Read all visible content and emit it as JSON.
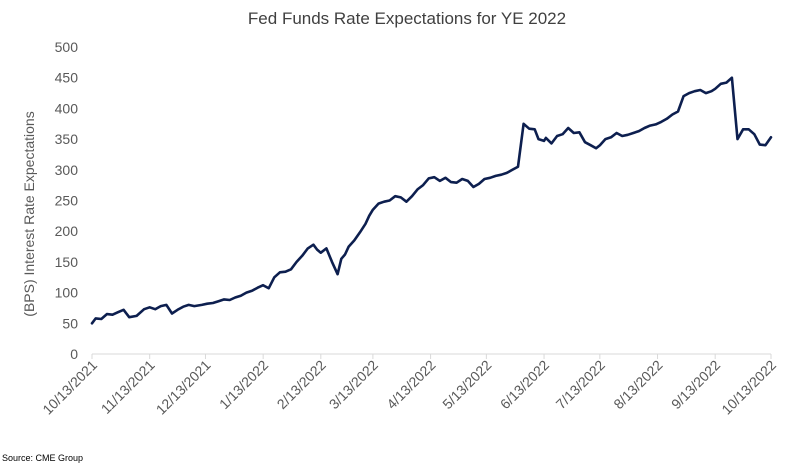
{
  "chart_data": {
    "type": "line",
    "title": "Fed Funds Rate Expectations for YE 2022",
    "xlabel": "",
    "ylabel": "(BPS) Interest Rate Expectations",
    "ylim": [
      0,
      500
    ],
    "yticks": [
      0,
      50,
      100,
      150,
      200,
      250,
      300,
      350,
      400,
      450,
      500
    ],
    "xticks": [
      "10/13/2021",
      "11/13/2021",
      "12/13/2021",
      "1/13/2022",
      "2/13/2022",
      "3/13/2022",
      "4/13/2022",
      "5/13/2022",
      "6/13/2022",
      "7/13/2022",
      "8/13/2022",
      "9/13/2022",
      "10/13/2022"
    ],
    "grid": false,
    "legend": "none",
    "source": "Source: CME Group",
    "colors": {
      "line": "#0d1f4f",
      "axis": "#d9d9d9",
      "text": "#595959"
    },
    "series": [
      {
        "name": "",
        "x": [
          "2021-10-13",
          "2021-10-15",
          "2021-10-18",
          "2021-10-21",
          "2021-10-24",
          "2021-10-27",
          "2021-10-30",
          "2021-11-02",
          "2021-11-06",
          "2021-11-10",
          "2021-11-13",
          "2021-11-16",
          "2021-11-19",
          "2021-11-22",
          "2021-11-25",
          "2021-11-28",
          "2021-12-01",
          "2021-12-04",
          "2021-12-07",
          "2021-12-11",
          "2021-12-14",
          "2021-12-17",
          "2021-12-20",
          "2021-12-23",
          "2021-12-26",
          "2021-12-29",
          "2022-01-01",
          "2022-01-04",
          "2022-01-07",
          "2022-01-10",
          "2022-01-13",
          "2022-01-16",
          "2022-01-19",
          "2022-01-22",
          "2022-01-25",
          "2022-01-28",
          "2022-01-31",
          "2022-02-03",
          "2022-02-06",
          "2022-02-09",
          "2022-02-11",
          "2022-02-13",
          "2022-02-16",
          "2022-02-19",
          "2022-02-22",
          "2022-02-24",
          "2022-02-26",
          "2022-02-28",
          "2022-03-03",
          "2022-03-06",
          "2022-03-09",
          "2022-03-11",
          "2022-03-13",
          "2022-03-16",
          "2022-03-19",
          "2022-03-22",
          "2022-03-25",
          "2022-03-28",
          "2022-03-31",
          "2022-04-03",
          "2022-04-06",
          "2022-04-09",
          "2022-04-12",
          "2022-04-15",
          "2022-04-18",
          "2022-04-21",
          "2022-04-24",
          "2022-04-27",
          "2022-04-30",
          "2022-05-03",
          "2022-05-06",
          "2022-05-09",
          "2022-05-12",
          "2022-05-15",
          "2022-05-18",
          "2022-05-21",
          "2022-05-24",
          "2022-05-27",
          "2022-05-30",
          "2022-06-02",
          "2022-06-05",
          "2022-06-08",
          "2022-06-10",
          "2022-06-13",
          "2022-06-14",
          "2022-06-17",
          "2022-06-20",
          "2022-06-23",
          "2022-06-26",
          "2022-06-29",
          "2022-07-02",
          "2022-07-05",
          "2022-07-08",
          "2022-07-11",
          "2022-07-13",
          "2022-07-16",
          "2022-07-19",
          "2022-07-22",
          "2022-07-25",
          "2022-07-28",
          "2022-07-31",
          "2022-08-03",
          "2022-08-06",
          "2022-08-09",
          "2022-08-12",
          "2022-08-15",
          "2022-08-18",
          "2022-08-21",
          "2022-08-24",
          "2022-08-27",
          "2022-08-30",
          "2022-09-02",
          "2022-09-05",
          "2022-09-08",
          "2022-09-11",
          "2022-09-13",
          "2022-09-16",
          "2022-09-19",
          "2022-09-22",
          "2022-09-25",
          "2022-09-28",
          "2022-10-01",
          "2022-10-04",
          "2022-10-07",
          "2022-10-10",
          "2022-10-13"
        ],
        "values": [
          50,
          58,
          57,
          65,
          64,
          68,
          72,
          60,
          62,
          73,
          76,
          73,
          78,
          80,
          66,
          72,
          77,
          80,
          78,
          80,
          82,
          83,
          86,
          89,
          88,
          92,
          95,
          100,
          103,
          108,
          112,
          107,
          125,
          133,
          134,
          138,
          150,
          160,
          172,
          178,
          170,
          165,
          172,
          150,
          130,
          155,
          162,
          175,
          185,
          198,
          212,
          225,
          235,
          245,
          248,
          250,
          257,
          255,
          248,
          257,
          268,
          275,
          286,
          288,
          282,
          287,
          280,
          279,
          285,
          282,
          272,
          277,
          285,
          287,
          290,
          292,
          295,
          300,
          305,
          375,
          367,
          366,
          350,
          347,
          352,
          343,
          355,
          358,
          368,
          360,
          361,
          345,
          340,
          335,
          340,
          350,
          353,
          360,
          355,
          357,
          360,
          363,
          368,
          372,
          374,
          378,
          383,
          390,
          395,
          420,
          425,
          428,
          430,
          425,
          428,
          432,
          440,
          442,
          450,
          350,
          366,
          366,
          358,
          341,
          340,
          353
        ]
      }
    ]
  }
}
